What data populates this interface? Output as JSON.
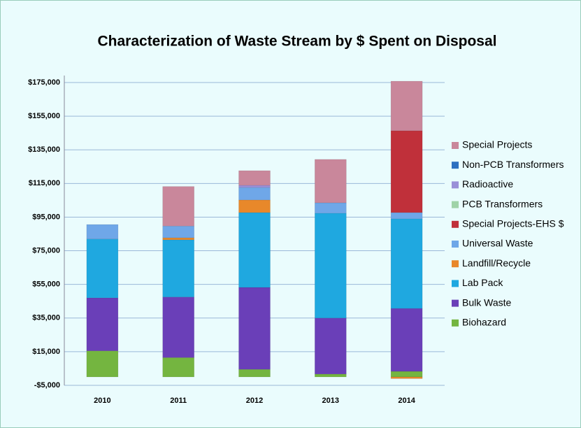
{
  "chart_data": {
    "type": "stacked_bar",
    "title": "Characterization of Waste Stream by $ Spent on Disposal",
    "categories": [
      "2010",
      "2011",
      "2012",
      "2013",
      "2014"
    ],
    "series": [
      {
        "name": "Biohazard",
        "color": "#74b540",
        "values": [
          15500,
          11500,
          4500,
          1700,
          3300
        ]
      },
      {
        "name": "Bulk Waste",
        "color": "#6a3fb8",
        "values": [
          31500,
          36000,
          48700,
          33300,
          37400
        ]
      },
      {
        "name": "Lab Pack",
        "color": "#1fa8e0",
        "values": [
          35000,
          34000,
          44500,
          62300,
          53300
        ]
      },
      {
        "name": "Landfill/Recycle",
        "color": "#e8882a",
        "values": [
          0,
          1200,
          7500,
          0,
          -1000
        ]
      },
      {
        "name": "Universal Waste",
        "color": "#6fa7e8",
        "values": [
          8600,
          7000,
          7400,
          6200,
          3700
        ]
      },
      {
        "name": "Special Projects-EHS $",
        "color": "#c0303a",
        "values": [
          0,
          0,
          0,
          0,
          48600
        ]
      },
      {
        "name": "PCB Transformers",
        "color": "#9fd3a8",
        "values": [
          0,
          0,
          0,
          0,
          0
        ]
      },
      {
        "name": "Radioactive",
        "color": "#9a8fd8",
        "values": [
          0,
          0,
          1300,
          0,
          0
        ]
      },
      {
        "name": "Non-PCB Transformers",
        "color": "#2e6fc0",
        "values": [
          0,
          0,
          0,
          0,
          0
        ]
      },
      {
        "name": "Special Projects",
        "color": "#c9879b",
        "values": [
          0,
          23500,
          8700,
          25800,
          29500
        ]
      }
    ],
    "ylim": [
      -5000,
      175000
    ],
    "yticks": [
      {
        "value": -5000,
        "label": "-$5,000"
      },
      {
        "value": 15000,
        "label": "$15,000"
      },
      {
        "value": 35000,
        "label": "$35,000"
      },
      {
        "value": 55000,
        "label": "$55,000"
      },
      {
        "value": 75000,
        "label": "$75,000"
      },
      {
        "value": 95000,
        "label": "$95,000"
      },
      {
        "value": 115000,
        "label": "$115,000"
      },
      {
        "value": 135000,
        "label": "$135,000"
      },
      {
        "value": 155000,
        "label": "$155,000"
      },
      {
        "value": 175000,
        "label": "$175,000"
      }
    ],
    "grid": true,
    "legend": "right"
  }
}
